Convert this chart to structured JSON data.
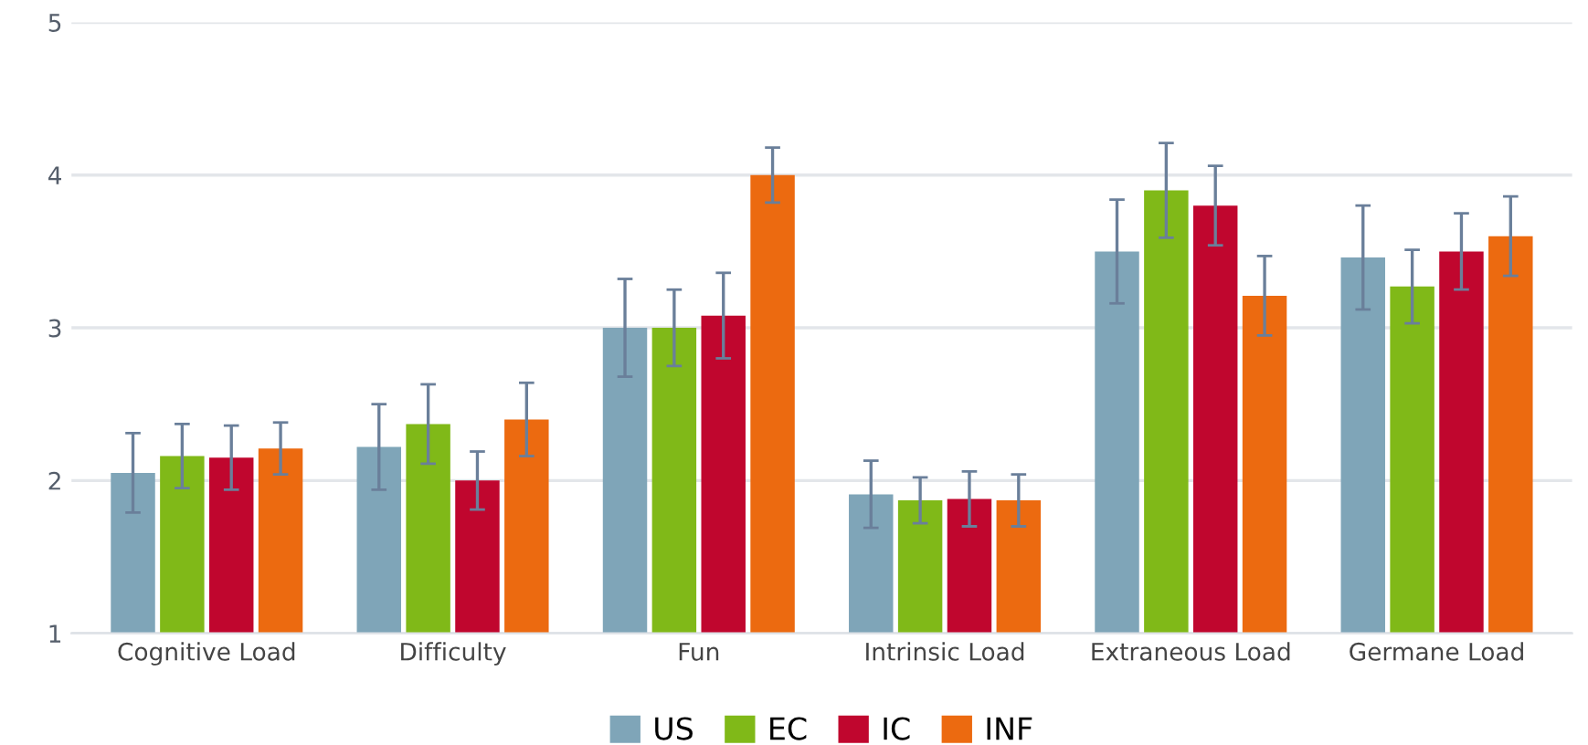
{
  "chart_data": {
    "type": "bar",
    "categories": [
      "Cognitive Load",
      "Difficulty",
      "Fun",
      "Intrinsic Load",
      "Extraneous Load",
      "Germane Load"
    ],
    "series": [
      {
        "name": "US",
        "color": "#7fa5b8",
        "values": [
          2.05,
          2.22,
          3.0,
          1.91,
          3.5,
          3.46
        ],
        "errors": [
          0.26,
          0.28,
          0.32,
          0.22,
          0.34,
          0.34
        ]
      },
      {
        "name": "EC",
        "color": "#80b918",
        "values": [
          2.16,
          2.37,
          3.0,
          1.87,
          3.9,
          3.27
        ],
        "errors": [
          0.21,
          0.26,
          0.25,
          0.15,
          0.31,
          0.24
        ]
      },
      {
        "name": "IC",
        "color": "#c0062e",
        "values": [
          2.15,
          2.0,
          3.08,
          1.88,
          3.8,
          3.5
        ],
        "errors": [
          0.21,
          0.19,
          0.28,
          0.18,
          0.26,
          0.25
        ]
      },
      {
        "name": "INF",
        "color": "#ec6a10",
        "values": [
          2.21,
          2.4,
          4.0,
          1.87,
          3.21,
          3.6
        ],
        "errors": [
          0.17,
          0.24,
          0.18,
          0.17,
          0.26,
          0.26
        ]
      }
    ],
    "ylim": [
      1,
      5
    ],
    "yticks": [
      1,
      2,
      3,
      4,
      5
    ],
    "grid": "y",
    "legend": "bottom"
  }
}
